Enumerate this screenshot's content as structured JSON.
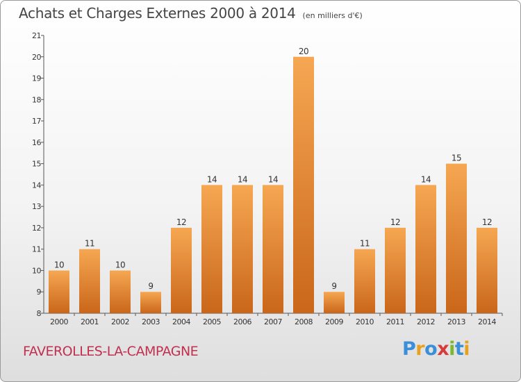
{
  "header": {
    "title": "Achats et Charges Externes 2000 à 2014",
    "unit": "(en milliers d'€)"
  },
  "footer": {
    "commune": "FAVEROLLES-LA-CAMPAGNE",
    "logo_letters": [
      "P",
      "r",
      "o",
      "x",
      "i",
      "t",
      "i"
    ],
    "logo_colors": [
      "#3a8fd8",
      "#e8a020",
      "#3a8fd8",
      "#d83a3a",
      "#7ab830",
      "#3a8fd8",
      "#e8a020"
    ]
  },
  "colors": {
    "bar_top": "#f6a752",
    "bar_bottom": "#c9661a",
    "axis": "#555555",
    "text": "#333333"
  },
  "chart_data": {
    "type": "bar",
    "categories": [
      "2000",
      "2001",
      "2002",
      "2003",
      "2004",
      "2005",
      "2006",
      "2007",
      "2008",
      "2009",
      "2010",
      "2011",
      "2012",
      "2013",
      "2014"
    ],
    "values": [
      10,
      11,
      10,
      9,
      12,
      14,
      14,
      14,
      20,
      9,
      11,
      12,
      14,
      15,
      12
    ],
    "data_labels": [
      "10",
      "11",
      "10",
      "9",
      "12",
      "14",
      "14",
      "14",
      "20",
      "9",
      "11",
      "12",
      "14",
      "15",
      "12"
    ],
    "yticks": [
      "8",
      "9",
      "10",
      "11",
      "12",
      "13",
      "14",
      "15",
      "16",
      "17",
      "18",
      "19",
      "20",
      "21"
    ],
    "ylim": [
      8,
      21
    ],
    "grid": false,
    "legend": "none"
  }
}
